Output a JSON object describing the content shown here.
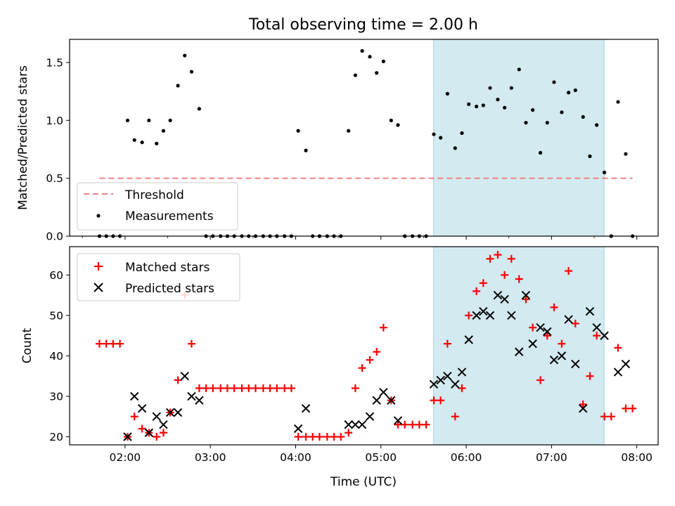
{
  "chart_data": {
    "title": "Total observing time = 2.00 h",
    "xlabel": "Time (UTC)",
    "x_ticks": [
      "02:00",
      "03:00",
      "04:00",
      "05:00",
      "06:00",
      "07:00",
      "08:00"
    ],
    "x_tick_hours": [
      2,
      3,
      4,
      5,
      6,
      7,
      8
    ],
    "x_range_hours": [
      1.35,
      8.25
    ],
    "shaded_span_hours": [
      5.617,
      7.617
    ],
    "shade_color": "#d2eaf0",
    "top": {
      "type": "scatter",
      "ylabel": "Matched/Predicted stars",
      "ylim": [
        0,
        1.7
      ],
      "y_ticks": [
        0.0,
        0.5,
        1.0,
        1.5
      ],
      "y_tick_labels": [
        "0.0",
        "0.5",
        "1.0",
        "1.5"
      ],
      "threshold": {
        "name": "Threshold",
        "value": 0.5,
        "x_range_hours": [
          1.7,
          7.95
        ],
        "color": "#f08080"
      },
      "measurements": {
        "name": "Measurements",
        "color": "#000000",
        "points": [
          [
            1.7,
            0
          ],
          [
            1.78,
            0
          ],
          [
            1.86,
            0
          ],
          [
            1.94,
            0
          ],
          [
            2.03,
            1.0
          ],
          [
            2.11,
            0.83
          ],
          [
            2.2,
            0.81
          ],
          [
            2.28,
            1.0
          ],
          [
            2.37,
            0.8
          ],
          [
            2.45,
            0.91
          ],
          [
            2.53,
            1.0
          ],
          [
            2.62,
            1.3
          ],
          [
            2.7,
            1.56
          ],
          [
            2.78,
            1.42
          ],
          [
            2.87,
            1.1
          ],
          [
            2.95,
            0
          ],
          [
            3.03,
            0
          ],
          [
            3.12,
            0
          ],
          [
            3.2,
            0
          ],
          [
            3.28,
            0
          ],
          [
            3.37,
            0
          ],
          [
            3.45,
            0
          ],
          [
            3.53,
            0
          ],
          [
            3.62,
            0
          ],
          [
            3.7,
            0
          ],
          [
            3.78,
            0
          ],
          [
            3.87,
            0
          ],
          [
            3.95,
            0
          ],
          [
            4.03,
            0.91
          ],
          [
            4.12,
            0.74
          ],
          [
            4.2,
            0
          ],
          [
            4.28,
            0
          ],
          [
            4.37,
            0
          ],
          [
            4.45,
            0
          ],
          [
            4.53,
            0
          ],
          [
            4.62,
            0.91
          ],
          [
            4.7,
            1.39
          ],
          [
            4.78,
            1.6
          ],
          [
            4.87,
            1.55
          ],
          [
            4.95,
            1.41
          ],
          [
            5.03,
            1.51
          ],
          [
            5.12,
            1.0
          ],
          [
            5.2,
            0.96
          ],
          [
            5.28,
            0
          ],
          [
            5.37,
            0
          ],
          [
            5.45,
            0
          ],
          [
            5.53,
            0
          ],
          [
            5.62,
            0.88
          ],
          [
            5.7,
            0.85
          ],
          [
            5.78,
            1.23
          ],
          [
            5.87,
            0.76
          ],
          [
            5.95,
            0.89
          ],
          [
            6.03,
            1.14
          ],
          [
            6.12,
            1.12
          ],
          [
            6.2,
            1.13
          ],
          [
            6.28,
            1.28
          ],
          [
            6.37,
            1.18
          ],
          [
            6.45,
            1.11
          ],
          [
            6.53,
            1.28
          ],
          [
            6.62,
            1.44
          ],
          [
            6.7,
            0.98
          ],
          [
            6.78,
            1.09
          ],
          [
            6.87,
            0.72
          ],
          [
            6.95,
            0.98
          ],
          [
            7.03,
            1.33
          ],
          [
            7.12,
            1.07
          ],
          [
            7.2,
            1.24
          ],
          [
            7.28,
            1.26
          ],
          [
            7.37,
            1.03
          ],
          [
            7.45,
            0.69
          ],
          [
            7.53,
            0.96
          ],
          [
            7.62,
            0.55
          ],
          [
            7.7,
            0
          ],
          [
            7.78,
            1.16
          ],
          [
            7.87,
            0.71
          ],
          [
            7.95,
            0
          ]
        ]
      },
      "legend_position": "lower-left"
    },
    "bottom": {
      "type": "scatter",
      "ylabel": "Count",
      "ylim": [
        18,
        67
      ],
      "y_ticks": [
        20,
        30,
        40,
        50,
        60
      ],
      "y_tick_labels": [
        "20",
        "30",
        "40",
        "50",
        "60"
      ],
      "series": [
        {
          "name": "Matched stars",
          "marker": "plus",
          "color": "#ff0000",
          "points": [
            [
              1.7,
              43
            ],
            [
              1.78,
              43
            ],
            [
              1.86,
              43
            ],
            [
              1.94,
              43
            ],
            [
              2.03,
              20
            ],
            [
              2.11,
              25
            ],
            [
              2.2,
              22
            ],
            [
              2.28,
              21
            ],
            [
              2.37,
              20
            ],
            [
              2.45,
              21
            ],
            [
              2.53,
              26
            ],
            [
              2.62,
              34
            ],
            [
              2.7,
              55
            ],
            [
              2.78,
              43
            ],
            [
              2.87,
              32
            ],
            [
              2.95,
              32
            ],
            [
              3.03,
              32
            ],
            [
              3.12,
              32
            ],
            [
              3.2,
              32
            ],
            [
              3.28,
              32
            ],
            [
              3.37,
              32
            ],
            [
              3.45,
              32
            ],
            [
              3.53,
              32
            ],
            [
              3.62,
              32
            ],
            [
              3.7,
              32
            ],
            [
              3.78,
              32
            ],
            [
              3.87,
              32
            ],
            [
              3.95,
              32
            ],
            [
              4.03,
              20
            ],
            [
              4.12,
              20
            ],
            [
              4.2,
              20
            ],
            [
              4.28,
              20
            ],
            [
              4.37,
              20
            ],
            [
              4.45,
              20
            ],
            [
              4.53,
              20
            ],
            [
              4.62,
              21
            ],
            [
              4.7,
              32
            ],
            [
              4.78,
              37
            ],
            [
              4.87,
              39
            ],
            [
              4.95,
              41
            ],
            [
              5.03,
              47
            ],
            [
              5.12,
              29
            ],
            [
              5.2,
              23
            ],
            [
              5.28,
              23
            ],
            [
              5.37,
              23
            ],
            [
              5.45,
              23
            ],
            [
              5.53,
              23
            ],
            [
              5.62,
              29
            ],
            [
              5.7,
              29
            ],
            [
              5.78,
              43
            ],
            [
              5.87,
              25
            ],
            [
              5.95,
              32
            ],
            [
              6.03,
              50
            ],
            [
              6.12,
              56
            ],
            [
              6.2,
              58
            ],
            [
              6.28,
              64
            ],
            [
              6.37,
              65
            ],
            [
              6.45,
              60
            ],
            [
              6.53,
              64
            ],
            [
              6.62,
              59
            ],
            [
              6.7,
              54
            ],
            [
              6.78,
              47
            ],
            [
              6.87,
              34
            ],
            [
              6.95,
              45
            ],
            [
              7.03,
              52
            ],
            [
              7.12,
              43
            ],
            [
              7.2,
              61
            ],
            [
              7.28,
              48
            ],
            [
              7.37,
              28
            ],
            [
              7.45,
              35
            ],
            [
              7.53,
              45
            ],
            [
              7.62,
              25
            ],
            [
              7.7,
              25
            ],
            [
              7.78,
              42
            ],
            [
              7.87,
              27
            ],
            [
              7.95,
              27
            ]
          ]
        },
        {
          "name": "Predicted stars",
          "marker": "x",
          "color": "#000000",
          "points": [
            [
              2.03,
              20
            ],
            [
              2.11,
              30
            ],
            [
              2.2,
              27
            ],
            [
              2.28,
              21
            ],
            [
              2.37,
              25
            ],
            [
              2.45,
              23
            ],
            [
              2.53,
              26
            ],
            [
              2.62,
              26
            ],
            [
              2.7,
              35
            ],
            [
              2.78,
              30
            ],
            [
              2.87,
              29
            ],
            [
              4.03,
              22
            ],
            [
              4.12,
              27
            ],
            [
              4.62,
              23
            ],
            [
              4.7,
              23
            ],
            [
              4.78,
              23
            ],
            [
              4.87,
              25
            ],
            [
              4.95,
              29
            ],
            [
              5.03,
              31
            ],
            [
              5.12,
              29
            ],
            [
              5.2,
              24
            ],
            [
              5.62,
              33
            ],
            [
              5.7,
              34
            ],
            [
              5.78,
              35
            ],
            [
              5.87,
              33
            ],
            [
              5.95,
              36
            ],
            [
              6.03,
              44
            ],
            [
              6.12,
              50
            ],
            [
              6.2,
              51
            ],
            [
              6.28,
              50
            ],
            [
              6.37,
              55
            ],
            [
              6.45,
              54
            ],
            [
              6.53,
              50
            ],
            [
              6.62,
              41
            ],
            [
              6.7,
              55
            ],
            [
              6.78,
              43
            ],
            [
              6.87,
              47
            ],
            [
              6.95,
              46
            ],
            [
              7.03,
              39
            ],
            [
              7.12,
              40
            ],
            [
              7.2,
              49
            ],
            [
              7.28,
              38
            ],
            [
              7.37,
              27
            ],
            [
              7.45,
              51
            ],
            [
              7.53,
              47
            ],
            [
              7.62,
              45
            ],
            [
              7.78,
              36
            ],
            [
              7.87,
              38
            ]
          ]
        }
      ],
      "legend_position": "upper-left"
    }
  }
}
